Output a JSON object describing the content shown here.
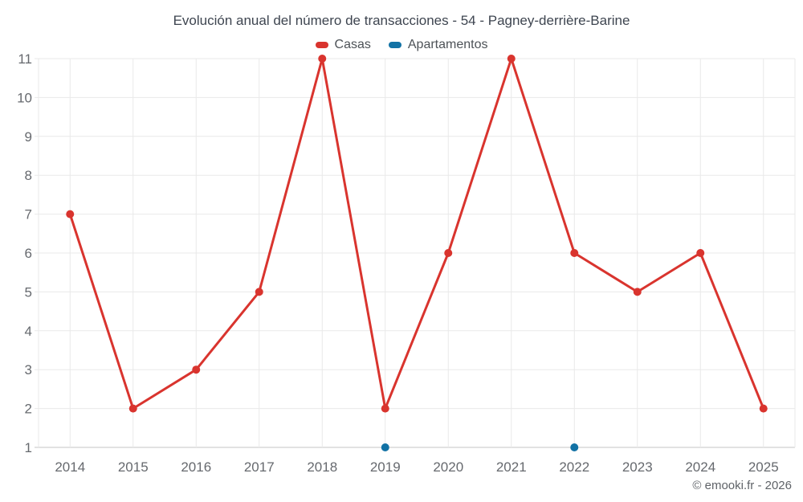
{
  "title": "Evolución anual del número de transacciones - 54 - Pagney-derrière-Barine",
  "footer": "© emooki.fr - 2026",
  "legend": [
    {
      "label": "Casas",
      "color": "#d9342e"
    },
    {
      "label": "Apartamentos",
      "color": "#1272a5"
    }
  ],
  "chart_data": {
    "type": "line",
    "title": "Evolución anual del número de transacciones - 54 - Pagney-derrière-Barine",
    "categories": [
      "2014",
      "2015",
      "2016",
      "2017",
      "2018",
      "2019",
      "2020",
      "2021",
      "2022",
      "2023",
      "2024",
      "2025"
    ],
    "series": [
      {
        "name": "Casas",
        "color": "#d9342e",
        "values": [
          7,
          2,
          3,
          5,
          11,
          2,
          6,
          11,
          6,
          5,
          6,
          2
        ]
      },
      {
        "name": "Apartamentos",
        "color": "#1272a5",
        "values": [
          null,
          null,
          null,
          null,
          null,
          1,
          null,
          null,
          1,
          null,
          null,
          null
        ]
      }
    ],
    "xlabel": "",
    "ylabel": "",
    "ylim": [
      1,
      11
    ],
    "yticks": [
      1,
      2,
      3,
      4,
      5,
      6,
      7,
      8,
      9,
      10,
      11
    ],
    "grid": true,
    "legend_position": "top",
    "marker_radius": 5,
    "line_width": 3
  }
}
